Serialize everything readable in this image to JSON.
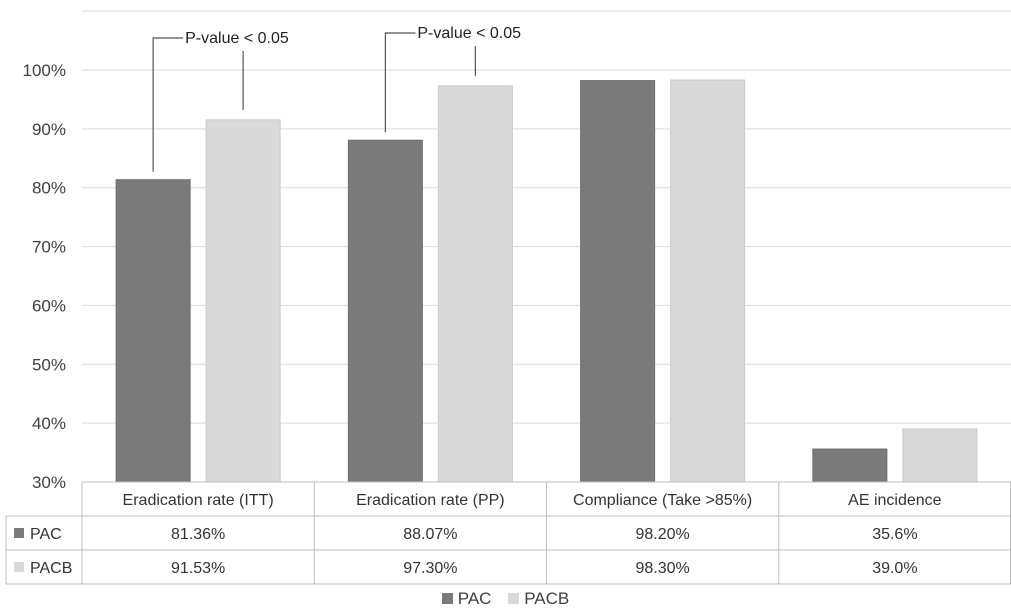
{
  "chart_data": {
    "type": "bar",
    "categories": [
      "Eradication rate (ITT)",
      "Eradication rate (PP)",
      "Compliance (Take >85%)",
      "AE incidence"
    ],
    "series": [
      {
        "name": "PAC",
        "color": "#7a7a7a",
        "values": [
          81.36,
          88.07,
          98.2,
          35.6
        ],
        "labels": [
          "81.36%",
          "88.07%",
          "98.20%",
          "35.6%"
        ]
      },
      {
        "name": "PACB",
        "color": "#d9d9d9",
        "values": [
          91.53,
          97.3,
          98.3,
          39.0
        ],
        "labels": [
          "91.53%",
          "97.30%",
          "98.30%",
          "39.0%"
        ]
      }
    ],
    "ylim": [
      30,
      100
    ],
    "yticks": [
      30,
      40,
      50,
      60,
      70,
      80,
      90,
      100
    ],
    "ytick_labels": [
      "30%",
      "40%",
      "50%",
      "60%",
      "70%",
      "80%",
      "90%",
      "100%"
    ],
    "grid": true,
    "data_table": true,
    "legend": "bottom",
    "annotations": [
      {
        "text": "P-value < 0.05",
        "category_index": 0
      },
      {
        "text": "P-value < 0.05",
        "category_index": 1
      }
    ]
  }
}
